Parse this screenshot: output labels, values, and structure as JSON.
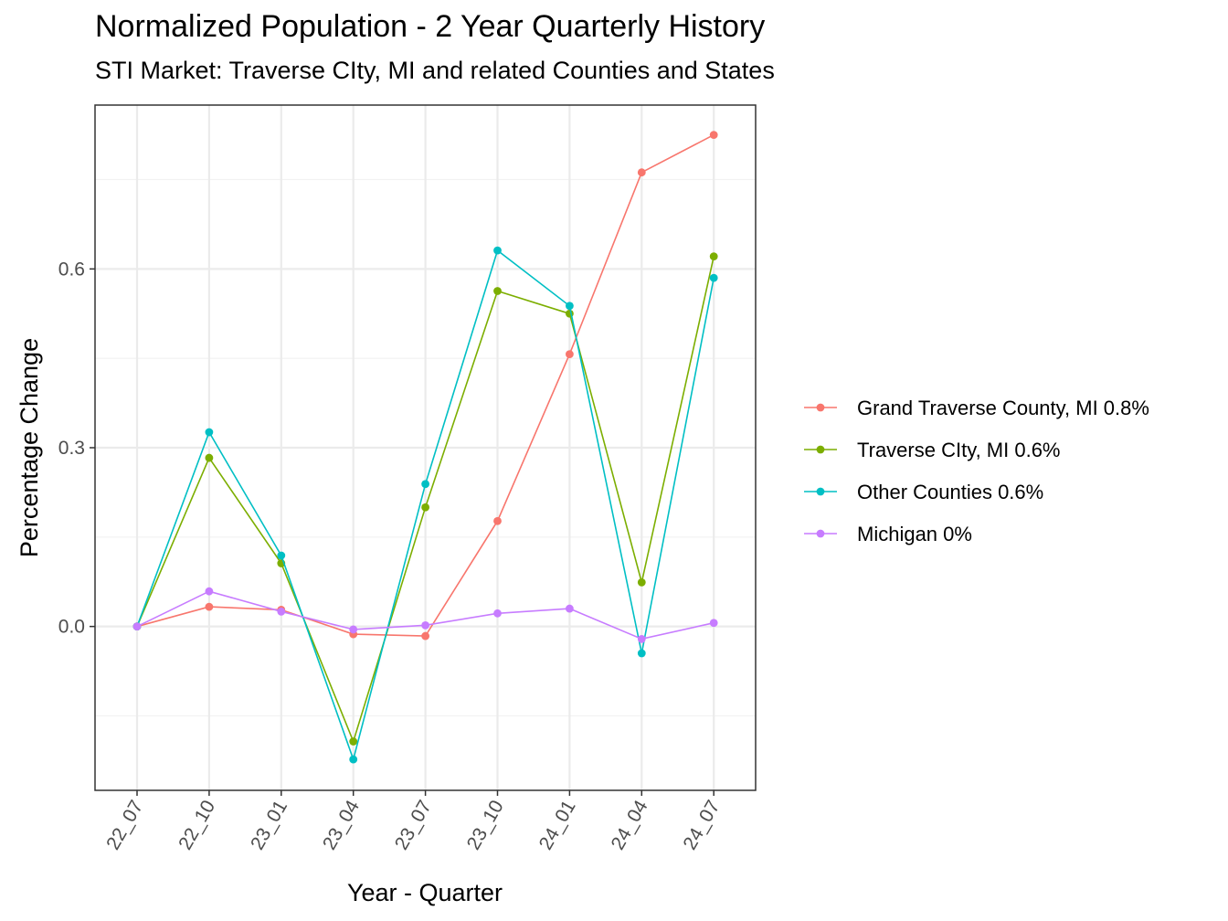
{
  "chart_data": {
    "type": "line",
    "title": "Normalized Population - 2 Year Quarterly History",
    "subtitle": "STI Market: Traverse CIty, MI and related Counties and States",
    "xlabel": "Year - Quarter",
    "ylabel": "Percentage Change",
    "x": [
      "22_07",
      "22_10",
      "23_01",
      "23_04",
      "23_07",
      "23_10",
      "24_01",
      "24_04",
      "24_07"
    ],
    "ylim": [
      -0.275,
      0.875
    ],
    "yticks": [
      0.0,
      0.3,
      0.6
    ],
    "ytick_labels": [
      "0.0",
      "0.3",
      "0.6"
    ],
    "grid": true,
    "legend_position": "right",
    "series": [
      {
        "name": "Grand Traverse County, MI 0.8%",
        "color": "#F8766D",
        "values": [
          0.0,
          0.033,
          0.028,
          -0.013,
          -0.016,
          0.177,
          0.457,
          0.762,
          0.825
        ]
      },
      {
        "name": "Traverse CIty, MI 0.6%",
        "color": "#7CAE00",
        "values": [
          0.0,
          0.283,
          0.106,
          -0.193,
          0.2,
          0.563,
          0.525,
          0.074,
          0.621
        ]
      },
      {
        "name": "Other Counties 0.6%",
        "color": "#00BFC4",
        "values": [
          0.0,
          0.326,
          0.119,
          -0.223,
          0.239,
          0.631,
          0.538,
          -0.045,
          0.585
        ]
      },
      {
        "name": "Michigan 0%",
        "color": "#C77CFF",
        "values": [
          0.0,
          0.059,
          0.025,
          -0.005,
          0.002,
          0.022,
          0.03,
          -0.021,
          0.006
        ]
      }
    ]
  }
}
